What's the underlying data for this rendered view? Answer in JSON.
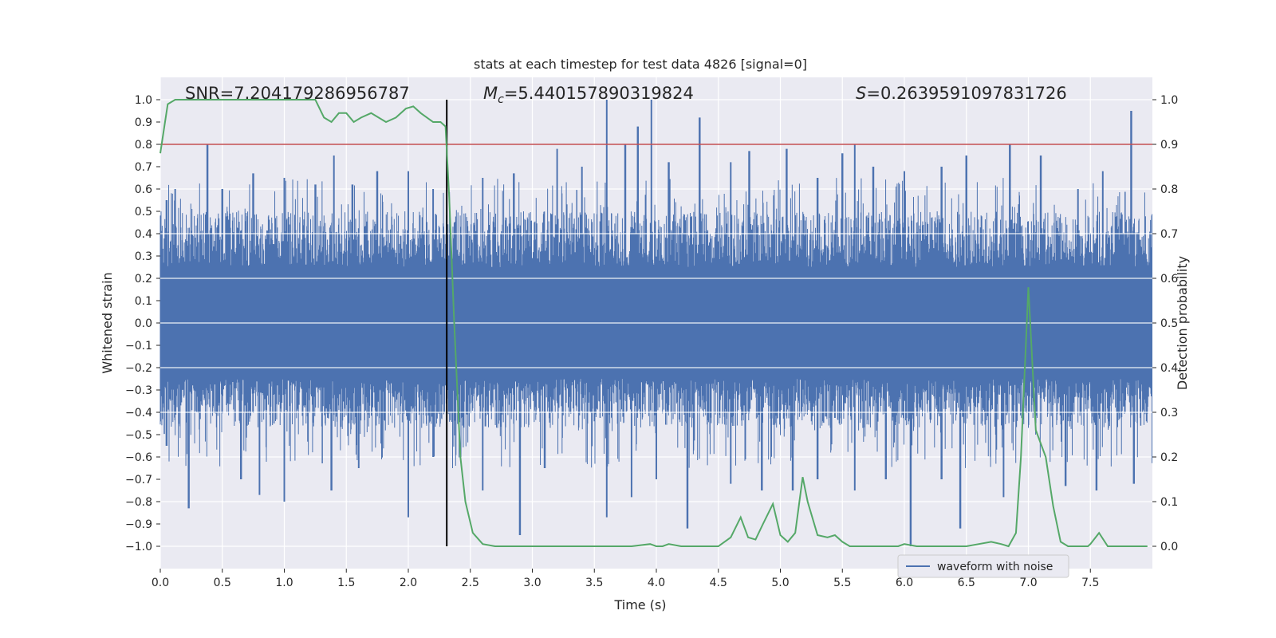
{
  "chart_data": {
    "type": "line",
    "title": "stats at each timestep for test data 4826 [signal=0]",
    "xlabel": "Time (s)",
    "ylabel_left": "Whitened strain",
    "ylabel_right": "Detection probability",
    "xlim": [
      0,
      8
    ],
    "ylim_left": [
      -1.1,
      1.1
    ],
    "ylim_right": [
      -0.05,
      1.05
    ],
    "x_ticks": [
      0.0,
      0.5,
      1.0,
      1.5,
      2.0,
      2.5,
      3.0,
      3.5,
      4.0,
      4.5,
      5.0,
      5.5,
      6.0,
      6.5,
      7.0,
      7.5
    ],
    "x_tick_labels": [
      "0.0",
      "0.5",
      "1.0",
      "1.5",
      "2.0",
      "2.5",
      "3.0",
      "3.5",
      "4.0",
      "4.5",
      "5.0",
      "5.5",
      "6.0",
      "6.5",
      "7.0",
      "7.5"
    ],
    "y_left_ticks": [
      -1.0,
      -0.9,
      -0.8,
      -0.7,
      -0.6,
      -0.5,
      -0.4,
      -0.3,
      -0.2,
      -0.1,
      0.0,
      0.1,
      0.2,
      0.3,
      0.4,
      0.5,
      0.6,
      0.7,
      0.8,
      0.9,
      1.0
    ],
    "y_left_tick_labels": [
      "−1.0",
      "−0.9",
      "−0.8",
      "−0.7",
      "−0.6",
      "−0.5",
      "−0.4",
      "−0.3",
      "−0.2",
      "−0.1",
      "0.0",
      "0.1",
      "0.2",
      "0.3",
      "0.4",
      "0.5",
      "0.6",
      "0.7",
      "0.8",
      "0.9",
      "1.0"
    ],
    "y_right_ticks": [
      0.0,
      0.1,
      0.2,
      0.3,
      0.4,
      0.5,
      0.6,
      0.7,
      0.8,
      0.9,
      1.0
    ],
    "y_right_tick_labels": [
      "0.0",
      "0.1",
      "0.2",
      "0.3",
      "0.4",
      "0.5",
      "0.6",
      "0.7",
      "0.8",
      "0.9",
      "1.0"
    ],
    "grid": true,
    "legend_position": "lower-right",
    "annotations": {
      "snr": "SNR=7.204179286956787",
      "mc_symbol": "M",
      "mc_subscript": "c",
      "mc_value": "=5.440157890319824",
      "s_symbol": "S",
      "s_value": "=0.2639591097831726"
    },
    "threshold_line": {
      "axis": "right",
      "y": 0.9,
      "color": "#c44e52"
    },
    "vertical_line": {
      "x": 2.31,
      "y_range": [
        -1.0,
        1.0
      ],
      "color": "#000000"
    },
    "waveform": {
      "name": "waveform with noise",
      "color": "#4c72b0",
      "band_half_width": 0.2,
      "peaks_positive": [
        [
          0.05,
          0.55
        ],
        [
          0.12,
          0.6
        ],
        [
          0.38,
          0.8
        ],
        [
          0.5,
          0.6
        ],
        [
          0.75,
          0.67
        ],
        [
          1.0,
          0.65
        ],
        [
          1.25,
          0.62
        ],
        [
          1.4,
          0.75
        ],
        [
          1.55,
          0.62
        ],
        [
          1.75,
          0.68
        ],
        [
          2.0,
          0.68
        ],
        [
          2.2,
          0.6
        ],
        [
          2.6,
          0.65
        ],
        [
          2.85,
          0.67
        ],
        [
          3.2,
          0.78
        ],
        [
          3.4,
          0.7
        ],
        [
          3.6,
          1.0
        ],
        [
          3.75,
          0.8
        ],
        [
          3.85,
          0.88
        ],
        [
          3.96,
          1.0
        ],
        [
          4.1,
          0.72
        ],
        [
          4.35,
          0.92
        ],
        [
          4.6,
          0.72
        ],
        [
          4.75,
          0.77
        ],
        [
          5.05,
          0.78
        ],
        [
          5.3,
          0.65
        ],
        [
          5.5,
          0.76
        ],
        [
          5.6,
          0.8
        ],
        [
          5.75,
          0.7
        ],
        [
          6.0,
          0.68
        ],
        [
          6.3,
          0.7
        ],
        [
          6.5,
          0.75
        ],
        [
          6.85,
          0.8
        ],
        [
          7.1,
          0.75
        ],
        [
          7.4,
          0.6
        ],
        [
          7.6,
          0.68
        ],
        [
          7.83,
          0.95
        ]
      ],
      "peaks_negative": [
        [
          0.05,
          -0.55
        ],
        [
          0.23,
          -0.83
        ],
        [
          0.65,
          -0.7
        ],
        [
          0.8,
          -0.77
        ],
        [
          1.0,
          -0.8
        ],
        [
          1.38,
          -0.75
        ],
        [
          1.6,
          -0.65
        ],
        [
          2.0,
          -0.87
        ],
        [
          2.2,
          -0.6
        ],
        [
          2.6,
          -0.75
        ],
        [
          2.9,
          -0.95
        ],
        [
          3.1,
          -0.65
        ],
        [
          3.6,
          -0.87
        ],
        [
          3.8,
          -0.78
        ],
        [
          4.0,
          -0.7
        ],
        [
          4.25,
          -0.92
        ],
        [
          4.6,
          -0.72
        ],
        [
          4.85,
          -0.75
        ],
        [
          5.1,
          -0.75
        ],
        [
          5.3,
          -0.7
        ],
        [
          5.6,
          -0.75
        ],
        [
          5.85,
          -0.7
        ],
        [
          6.05,
          -1.0
        ],
        [
          6.3,
          -0.7
        ],
        [
          6.45,
          -0.92
        ],
        [
          6.8,
          -0.78
        ],
        [
          7.3,
          -0.73
        ],
        [
          7.55,
          -0.75
        ],
        [
          7.85,
          -0.72
        ]
      ]
    },
    "probability": {
      "color": "#55a868",
      "x": [
        0.0,
        0.06,
        0.12,
        0.18,
        0.3,
        0.5,
        0.8,
        1.0,
        1.2,
        1.25,
        1.32,
        1.38,
        1.44,
        1.5,
        1.56,
        1.62,
        1.7,
        1.76,
        1.82,
        1.9,
        1.98,
        2.04,
        2.1,
        2.2,
        2.26,
        2.3,
        2.33,
        2.37,
        2.42,
        2.46,
        2.52,
        2.6,
        2.7,
        2.8,
        3.0,
        3.2,
        3.4,
        3.6,
        3.8,
        3.95,
        4.0,
        4.05,
        4.1,
        4.2,
        4.3,
        4.4,
        4.5,
        4.6,
        4.68,
        4.74,
        4.8,
        4.86,
        4.94,
        5.0,
        5.06,
        5.12,
        5.18,
        5.22,
        5.3,
        5.38,
        5.44,
        5.5,
        5.56,
        5.7,
        5.8,
        5.95,
        6.0,
        6.1,
        6.3,
        6.5,
        6.6,
        6.7,
        6.78,
        6.84,
        6.9,
        6.94,
        7.0,
        7.06,
        7.14,
        7.2,
        7.26,
        7.32,
        7.4,
        7.48,
        7.5,
        7.57,
        7.64,
        7.7,
        7.8,
        7.96
      ],
      "y": [
        0.88,
        0.99,
        1.0,
        1.0,
        1.0,
        1.0,
        1.0,
        1.0,
        1.0,
        1.0,
        0.96,
        0.95,
        0.97,
        0.97,
        0.95,
        0.96,
        0.97,
        0.96,
        0.95,
        0.96,
        0.98,
        0.985,
        0.97,
        0.95,
        0.95,
        0.94,
        0.78,
        0.5,
        0.2,
        0.1,
        0.03,
        0.005,
        0.0,
        0.0,
        0.0,
        0.0,
        0.0,
        0.0,
        0.0,
        0.005,
        0.0,
        0.0,
        0.005,
        0.0,
        0.0,
        0.0,
        0.0,
        0.02,
        0.065,
        0.02,
        0.015,
        0.05,
        0.095,
        0.025,
        0.01,
        0.03,
        0.155,
        0.1,
        0.025,
        0.02,
        0.025,
        0.01,
        0.0,
        0.0,
        0.0,
        0.0,
        0.005,
        0.0,
        0.0,
        0.0,
        0.005,
        0.01,
        0.005,
        0.0,
        0.03,
        0.2,
        0.58,
        0.26,
        0.2,
        0.09,
        0.01,
        0.0,
        0.0,
        0.0,
        0.005,
        0.03,
        0.0,
        0.0,
        0.0,
        0.0
      ]
    }
  }
}
